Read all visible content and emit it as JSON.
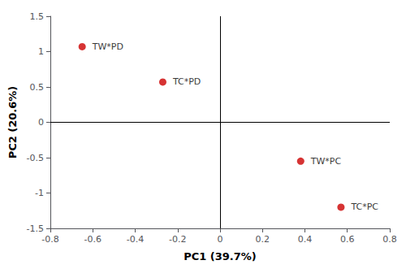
{
  "chart_data": {
    "type": "scatter",
    "xlabel": "PC1 (39.7%)",
    "ylabel": "PC2 (20.6%)",
    "points": [
      {
        "label": "TW*PD",
        "x": -0.65,
        "y": 1.07
      },
      {
        "label": "TC*PD",
        "x": -0.27,
        "y": 0.57
      },
      {
        "label": "TW*PC",
        "x": 0.38,
        "y": -0.55
      },
      {
        "label": "TC*PC",
        "x": 0.57,
        "y": -1.2
      }
    ],
    "color": "#cc0000",
    "xlim": [
      -0.8,
      0.8
    ],
    "ylim": [
      -1.5,
      1.5
    ],
    "xticks": [
      -0.8,
      -0.6,
      -0.4,
      -0.2,
      0,
      0.2,
      0.4,
      0.6,
      0.8
    ],
    "yticks": [
      -1.5,
      -1,
      -0.5,
      0,
      0.5,
      1,
      1.5
    ],
    "grid": false
  }
}
